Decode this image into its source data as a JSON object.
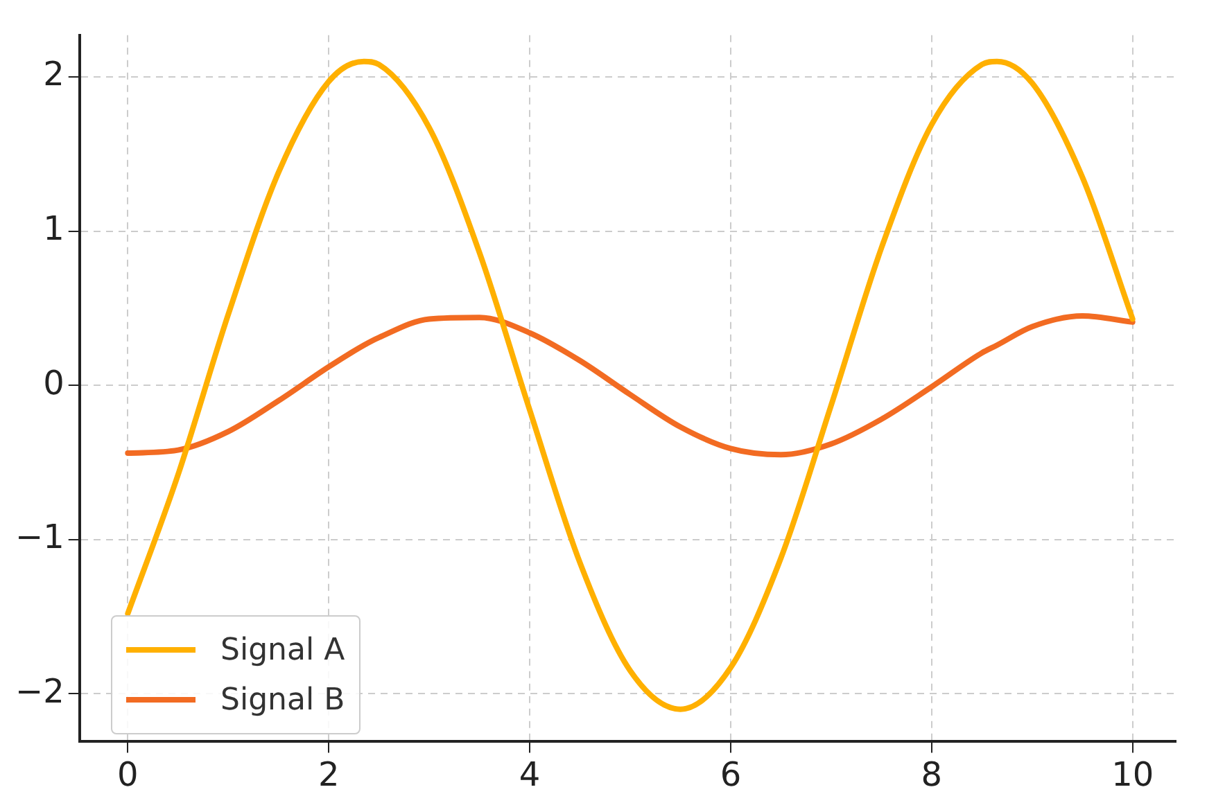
{
  "chart_data": {
    "type": "line",
    "x": [
      0,
      0.5,
      1,
      1.5,
      2,
      2.35,
      2.5,
      3,
      3.5,
      4,
      4.5,
      5,
      5.5,
      6,
      6.5,
      7,
      7.5,
      8,
      8.5,
      8.65,
      9,
      9.5,
      10
    ],
    "series": [
      {
        "name": "Signal A",
        "color": "#ffb000",
        "values": [
          -1.48,
          -0.58,
          0.46,
          1.38,
          1.97,
          2.1,
          2.08,
          1.67,
          0.86,
          -0.16,
          -1.15,
          -1.85,
          -2.1,
          -1.83,
          -1.12,
          -0.13,
          0.89,
          1.69,
          2.08,
          2.1,
          1.96,
          1.35,
          0.43
        ]
      },
      {
        "name": "Signal B",
        "color": "#f26b22",
        "values": [
          -0.44,
          -0.42,
          -0.3,
          -0.1,
          0.12,
          0.26,
          0.31,
          0.43,
          0.44,
          0.34,
          0.16,
          -0.06,
          -0.27,
          -0.41,
          -0.45,
          -0.38,
          -0.22,
          -0.01,
          0.21,
          0.26,
          0.38,
          0.45,
          0.41
        ]
      }
    ],
    "xlim": [
      -0.48,
      10.43
    ],
    "ylim": [
      -2.31,
      2.27
    ],
    "xticks": [
      0,
      2,
      4,
      6,
      8,
      10
    ],
    "yticks": [
      {
        "value": -2,
        "label": "−2"
      },
      {
        "value": -1,
        "label": "−1"
      },
      0,
      1,
      2
    ],
    "grid": true,
    "legend": "bottom left",
    "marker": "none",
    "line_style": "solid"
  }
}
